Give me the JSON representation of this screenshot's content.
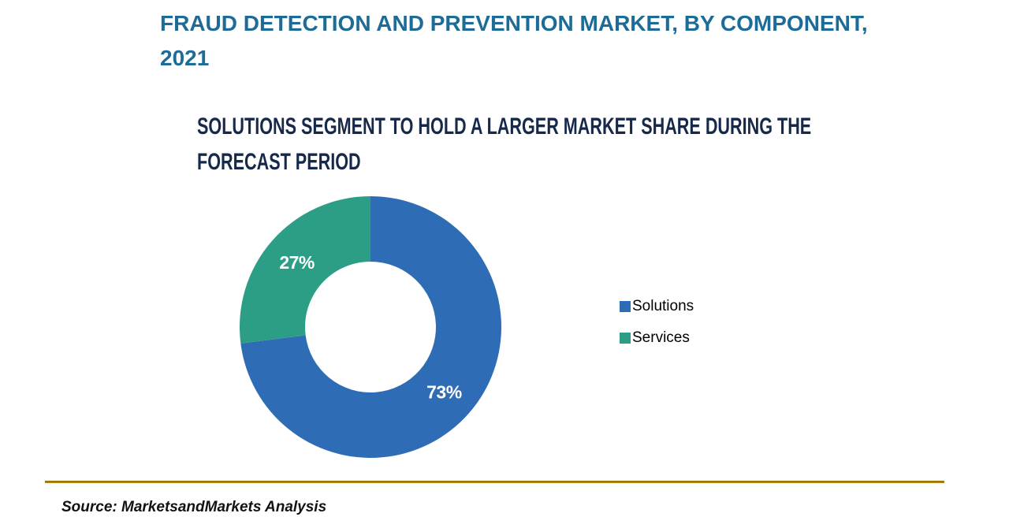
{
  "page": {
    "title_lines": [
      "FRAUD DETECTION AND PREVENTION MARKET, BY COMPONENT,",
      "2021"
    ],
    "subtitle_lines": [
      "SOLUTIONS SEGMENT TO HOLD A LARGER MARKET SHARE DURING THE",
      "FORECAST PERIOD"
    ],
    "source": "Source: MarketsandMarkets Analysis"
  },
  "colors": {
    "title": "#1d6b97",
    "subtitle": "#16294a",
    "solutions_blue": "#2e6db5",
    "services_green": "#2b9e85",
    "divider_gold": "#a87e0a",
    "slice_label_text": "#ffffff"
  },
  "chart_data": {
    "type": "pie",
    "donut": true,
    "donut_hole_ratio": 0.5,
    "title": "FRAUD DETECTION AND PREVENTION MARKET, BY COMPONENT, 2021",
    "subtitle": "SOLUTIONS SEGMENT TO HOLD A LARGER MARKET SHARE DURING THE FORECAST PERIOD",
    "categories": [
      "Solutions",
      "Services"
    ],
    "values": [
      73,
      27
    ],
    "data_labels": [
      "73%",
      "27%"
    ],
    "colors": [
      "#2e6db5",
      "#2b9e85"
    ],
    "start_angle_deg": 0,
    "direction": "clockwise",
    "legend_position": "right",
    "source": "Source: MarketsandMarkets Analysis"
  },
  "legend": {
    "items": [
      {
        "label": "Solutions",
        "color": "#2e6db5"
      },
      {
        "label": "Services",
        "color": "#2b9e85"
      }
    ]
  }
}
